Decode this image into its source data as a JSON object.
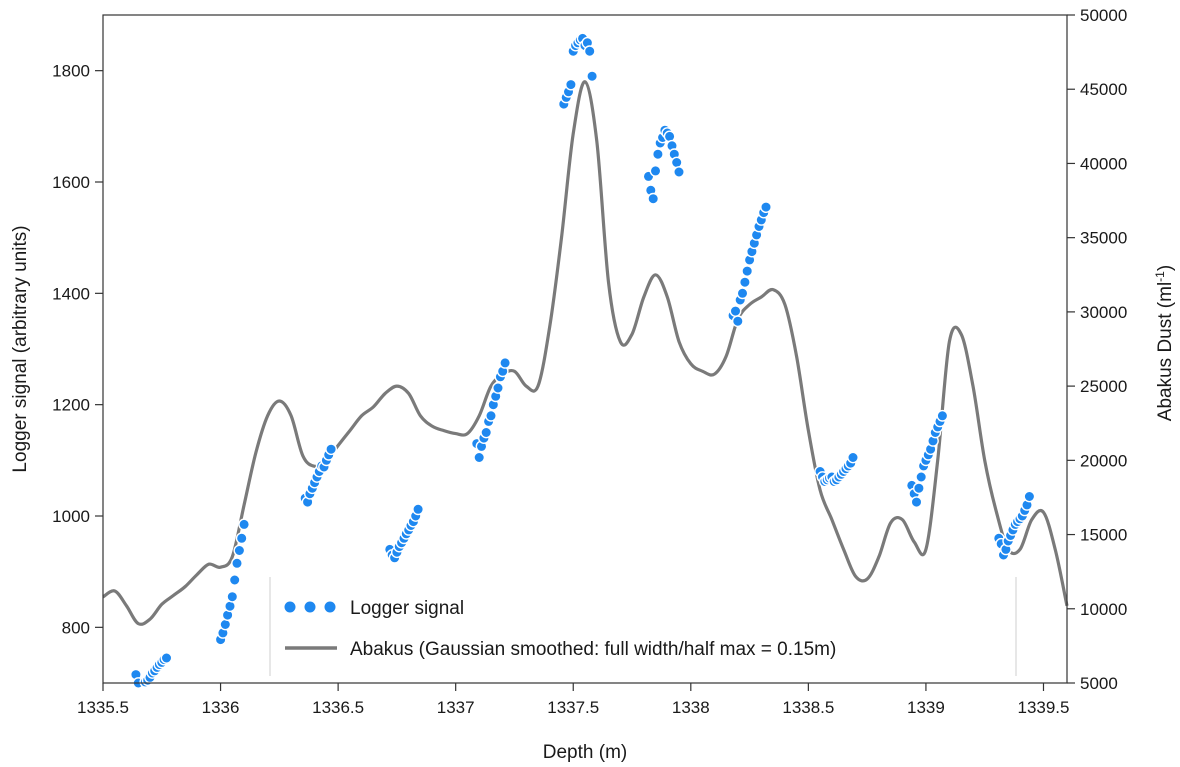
{
  "chart_data": {
    "type": "line",
    "title": "",
    "xlabel": "Depth (m)",
    "ylabel_left": "Logger signal (arbitrary units)",
    "ylabel_right_main": "Abakus Dust (ml",
    "ylabel_right_sup": "-1",
    "ylabel_right_tail": ")",
    "xlim": [
      1335.5,
      1339.6
    ],
    "ylim_left": [
      700,
      1900
    ],
    "ylim_right": [
      5000,
      50000
    ],
    "x_ticks": [
      1335.5,
      1336,
      1336.5,
      1337,
      1337.5,
      1338,
      1338.5,
      1339,
      1339.5
    ],
    "x_tick_labels": [
      "1335.5",
      "1336",
      "1336.5",
      "1337",
      "1337.5",
      "1338",
      "1338.5",
      "1339",
      "1339.5"
    ],
    "y_left_ticks": [
      800,
      1000,
      1200,
      1400,
      1600,
      1800
    ],
    "y_left_tick_labels": [
      "800",
      "1000",
      "1200",
      "1400",
      "1600",
      "1800"
    ],
    "y_right_ticks": [
      5000,
      10000,
      15000,
      20000,
      25000,
      30000,
      35000,
      40000,
      45000,
      50000
    ],
    "y_right_tick_labels": [
      "5000",
      "10000",
      "15000",
      "20000",
      "25000",
      "30000",
      "35000",
      "40000",
      "45000",
      "50000"
    ],
    "grid": false,
    "legend_position": "bottom-center",
    "series": [
      {
        "name": "Logger signal",
        "kind": "scatter",
        "axis": "left",
        "color": "#1e88f0",
        "x": [
          1335.64,
          1335.65,
          1335.66,
          1335.67,
          1335.68,
          1335.69,
          1335.7,
          1335.71,
          1335.72,
          1335.73,
          1335.74,
          1335.75,
          1335.76,
          1335.77,
          1336.0,
          1336.01,
          1336.02,
          1336.03,
          1336.04,
          1336.05,
          1336.06,
          1336.07,
          1336.08,
          1336.09,
          1336.1,
          1336.36,
          1336.37,
          1336.38,
          1336.39,
          1336.4,
          1336.41,
          1336.42,
          1336.43,
          1336.44,
          1336.45,
          1336.46,
          1336.47,
          1336.72,
          1336.73,
          1336.74,
          1336.75,
          1336.76,
          1336.77,
          1336.78,
          1336.79,
          1336.8,
          1336.81,
          1336.82,
          1336.83,
          1336.84,
          1337.09,
          1337.1,
          1337.11,
          1337.12,
          1337.13,
          1337.14,
          1337.15,
          1337.16,
          1337.17,
          1337.18,
          1337.19,
          1337.2,
          1337.21,
          1337.46,
          1337.47,
          1337.48,
          1337.49,
          1337.5,
          1337.51,
          1337.52,
          1337.53,
          1337.54,
          1337.55,
          1337.56,
          1337.57,
          1337.58,
          1337.82,
          1337.83,
          1337.84,
          1337.85,
          1337.86,
          1337.87,
          1337.88,
          1337.89,
          1337.9,
          1337.91,
          1337.92,
          1337.93,
          1337.94,
          1337.95,
          1338.18,
          1338.19,
          1338.2,
          1338.21,
          1338.22,
          1338.23,
          1338.24,
          1338.25,
          1338.26,
          1338.27,
          1338.28,
          1338.29,
          1338.3,
          1338.31,
          1338.32,
          1338.55,
          1338.56,
          1338.57,
          1338.58,
          1338.59,
          1338.6,
          1338.61,
          1338.62,
          1338.63,
          1338.64,
          1338.65,
          1338.66,
          1338.67,
          1338.68,
          1338.69,
          1338.94,
          1338.95,
          1338.96,
          1338.97,
          1338.98,
          1338.99,
          1339.0,
          1339.01,
          1339.02,
          1339.03,
          1339.04,
          1339.05,
          1339.06,
          1339.07,
          1339.31,
          1339.32,
          1339.33,
          1339.34,
          1339.35,
          1339.36,
          1339.37,
          1339.38,
          1339.39,
          1339.4,
          1339.41,
          1339.42,
          1339.43,
          1339.44
        ],
        "y": [
          715,
          700,
          695,
          697,
          702,
          705,
          710,
          718,
          722,
          728,
          733,
          737,
          742,
          745,
          778,
          790,
          805,
          822,
          838,
          855,
          885,
          915,
          938,
          960,
          985,
          1032,
          1025,
          1040,
          1050,
          1060,
          1070,
          1080,
          1090,
          1088,
          1100,
          1110,
          1120,
          940,
          930,
          925,
          935,
          945,
          952,
          960,
          968,
          975,
          983,
          990,
          1000,
          1012,
          1130,
          1105,
          1125,
          1140,
          1150,
          1170,
          1180,
          1200,
          1215,
          1230,
          1250,
          1260,
          1275,
          1740,
          1752,
          1762,
          1775,
          1835,
          1845,
          1850,
          1855,
          1858,
          1845,
          1850,
          1835,
          1790,
          1610,
          1585,
          1570,
          1620,
          1650,
          1670,
          1680,
          1693,
          1688,
          1682,
          1665,
          1650,
          1635,
          1618,
          1360,
          1368,
          1350,
          1388,
          1400,
          1420,
          1440,
          1460,
          1475,
          1490,
          1505,
          1520,
          1532,
          1545,
          1555,
          1080,
          1070,
          1062,
          1065,
          1068,
          1070,
          1062,
          1065,
          1070,
          1075,
          1080,
          1085,
          1090,
          1095,
          1105,
          1055,
          1040,
          1025,
          1050,
          1070,
          1090,
          1100,
          1110,
          1120,
          1135,
          1150,
          1160,
          1170,
          1180,
          960,
          950,
          930,
          940,
          955,
          965,
          975,
          985,
          990,
          995,
          1000,
          1010,
          1020,
          1035
        ]
      },
      {
        "name": "Abakus (Gaussian smoothed: full width/half max = 0.15m)",
        "kind": "line",
        "axis": "right",
        "color": "#7a7a7a",
        "x": [
          1335.5,
          1335.55,
          1335.6,
          1335.65,
          1335.7,
          1335.75,
          1335.8,
          1335.85,
          1335.9,
          1335.95,
          1336.0,
          1336.05,
          1336.1,
          1336.15,
          1336.2,
          1336.25,
          1336.3,
          1336.35,
          1336.4,
          1336.45,
          1336.5,
          1336.55,
          1336.6,
          1336.65,
          1336.7,
          1336.75,
          1336.8,
          1336.85,
          1336.9,
          1336.95,
          1337.0,
          1337.05,
          1337.1,
          1337.15,
          1337.2,
          1337.25,
          1337.3,
          1337.35,
          1337.4,
          1337.45,
          1337.5,
          1337.55,
          1337.6,
          1337.65,
          1337.7,
          1337.75,
          1337.8,
          1337.85,
          1337.9,
          1337.95,
          1338.0,
          1338.05,
          1338.1,
          1338.15,
          1338.2,
          1338.25,
          1338.3,
          1338.35,
          1338.4,
          1338.45,
          1338.5,
          1338.55,
          1338.6,
          1338.65,
          1338.7,
          1338.75,
          1338.8,
          1338.85,
          1338.9,
          1338.95,
          1339.0,
          1339.05,
          1339.1,
          1339.15,
          1339.2,
          1339.25,
          1339.3,
          1339.35,
          1339.4,
          1339.45,
          1339.5,
          1339.55,
          1339.6
        ],
        "y": [
          10800,
          11200,
          10200,
          9000,
          9300,
          10300,
          10900,
          11500,
          12300,
          13000,
          12800,
          13500,
          17000,
          20500,
          23000,
          24000,
          23000,
          20300,
          19600,
          20000,
          21000,
          22000,
          23000,
          23600,
          24500,
          25000,
          24500,
          23000,
          22300,
          22000,
          21800,
          21800,
          23000,
          25000,
          25800,
          26000,
          25000,
          25000,
          29000,
          35000,
          42000,
          45500,
          41500,
          32000,
          28000,
          28500,
          31000,
          32500,
          31000,
          28000,
          26500,
          26000,
          25800,
          27000,
          29500,
          30500,
          31000,
          31500,
          30500,
          27000,
          22000,
          18000,
          16000,
          14000,
          12200,
          12000,
          13500,
          15800,
          16000,
          14500,
          14000,
          20000,
          28000,
          28500,
          25000,
          20000,
          16500,
          14000,
          14000,
          16000,
          16500,
          14000,
          10200
        ]
      }
    ]
  }
}
